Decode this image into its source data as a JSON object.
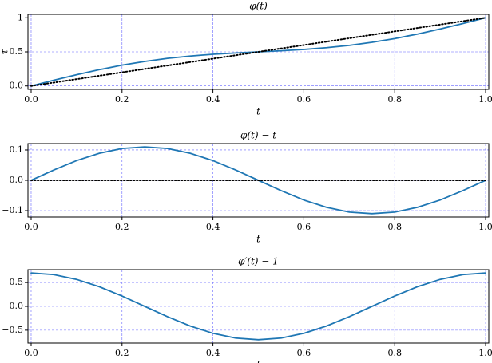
{
  "chart_data": [
    {
      "type": "line",
      "title": "φ(t)",
      "xlabel": "t",
      "ylabel": "τ",
      "grid": true,
      "grid_color": "#6666ff",
      "x": [
        0,
        0.05,
        0.1,
        0.15,
        0.2,
        0.25,
        0.3,
        0.35,
        0.4,
        0.45,
        0.5,
        0.55,
        0.6,
        0.65,
        0.7,
        0.75,
        0.8,
        0.85,
        0.9,
        0.95,
        1
      ],
      "xlim": [
        -0.007,
        1.007
      ],
      "xticks": [
        {
          "value": 0,
          "label": "0.0"
        },
        {
          "value": 0.2,
          "label": "0.2"
        },
        {
          "value": 0.4,
          "label": "0.4"
        },
        {
          "value": 0.6,
          "label": "0.6"
        },
        {
          "value": 0.8,
          "label": "0.8"
        },
        {
          "value": 1,
          "label": "1.0"
        }
      ],
      "ylim": [
        -0.05,
        1.05
      ],
      "yticks": [
        {
          "value": 0,
          "label": "0.0"
        },
        0.5,
        {
          "value": 1,
          "label": "1"
        }
      ],
      "series": [
        {
          "color": "#1f77b4",
          "linestyle": "solid",
          "values": [
            0,
            0.084,
            0.165,
            0.239,
            0.305,
            0.36,
            0.405,
            0.439,
            0.465,
            0.484,
            0.5,
            0.516,
            0.535,
            0.561,
            0.595,
            0.64,
            0.695,
            0.761,
            0.835,
            0.916,
            1
          ]
        },
        {
          "color": "#000000",
          "linestyle": "dotted",
          "values": [
            0,
            0.05,
            0.1,
            0.15,
            0.2,
            0.25,
            0.3,
            0.35,
            0.4,
            0.45,
            0.5,
            0.55,
            0.6,
            0.65,
            0.7,
            0.75,
            0.8,
            0.85,
            0.9,
            0.95,
            1
          ]
        }
      ]
    },
    {
      "type": "line",
      "title": "φ(t) − t",
      "xlabel": "t",
      "grid": true,
      "grid_color": "#6666ff",
      "x": [
        0,
        0.05,
        0.1,
        0.15,
        0.2,
        0.25,
        0.3,
        0.35,
        0.4,
        0.45,
        0.5,
        0.55,
        0.6,
        0.65,
        0.7,
        0.75,
        0.8,
        0.85,
        0.9,
        0.95,
        1
      ],
      "xlim": [
        -0.007,
        1.007
      ],
      "xticks": [
        {
          "value": 0,
          "label": "0.0"
        },
        {
          "value": 0.2,
          "label": "0.2"
        },
        {
          "value": 0.4,
          "label": "0.4"
        },
        {
          "value": 0.6,
          "label": "0.6"
        },
        {
          "value": 0.8,
          "label": "0.8"
        },
        {
          "value": 1,
          "label": "1.0"
        }
      ],
      "ylim": [
        -0.121,
        0.121
      ],
      "yticks": [
        {
          "value": -0.1,
          "label": "−0.1"
        },
        {
          "value": 0,
          "label": "0.0"
        },
        0.1
      ],
      "series": [
        {
          "color": "#1f77b4",
          "linestyle": "solid",
          "values": [
            0,
            0.034,
            0.065,
            0.089,
            0.105,
            0.11,
            0.105,
            0.089,
            0.065,
            0.034,
            0,
            -0.034,
            -0.065,
            -0.089,
            -0.105,
            -0.11,
            -0.105,
            -0.089,
            -0.065,
            -0.034,
            0
          ]
        },
        {
          "color": "#000000",
          "linestyle": "dotted",
          "values": [
            0,
            0,
            0,
            0,
            0,
            0,
            0,
            0,
            0,
            0,
            0,
            0,
            0,
            0,
            0,
            0,
            0,
            0,
            0,
            0,
            0
          ]
        }
      ]
    },
    {
      "type": "line",
      "title": "φ′(t) − 1",
      "xlabel": "t",
      "grid": true,
      "grid_color": "#6666ff",
      "x": [
        0,
        0.05,
        0.1,
        0.15,
        0.2,
        0.25,
        0.3,
        0.35,
        0.4,
        0.45,
        0.5,
        0.55,
        0.6,
        0.65,
        0.7,
        0.75,
        0.8,
        0.85,
        0.9,
        0.95,
        1
      ],
      "xlim": [
        -0.007,
        1.007
      ],
      "xticks": [
        {
          "value": 0,
          "label": "0.0"
        },
        {
          "value": 0.2,
          "label": "0.2"
        },
        {
          "value": 0.4,
          "label": "0.4"
        },
        {
          "value": 0.6,
          "label": "0.6"
        },
        {
          "value": 0.8,
          "label": "0.8"
        },
        {
          "value": 1,
          "label": "1.0"
        }
      ],
      "ylim": [
        -0.77,
        0.77
      ],
      "yticks": [
        {
          "value": -0.5,
          "label": "−0.5"
        },
        {
          "value": 0,
          "label": "0.0"
        },
        0.5
      ],
      "series": [
        {
          "color": "#1f77b4",
          "linestyle": "solid",
          "values": [
            0.7,
            0.666,
            0.566,
            0.412,
            0.216,
            0,
            -0.216,
            -0.412,
            -0.566,
            -0.666,
            -0.7,
            -0.666,
            -0.566,
            -0.412,
            -0.216,
            0,
            0.216,
            0.412,
            0.566,
            0.666,
            0.7
          ]
        }
      ]
    }
  ]
}
